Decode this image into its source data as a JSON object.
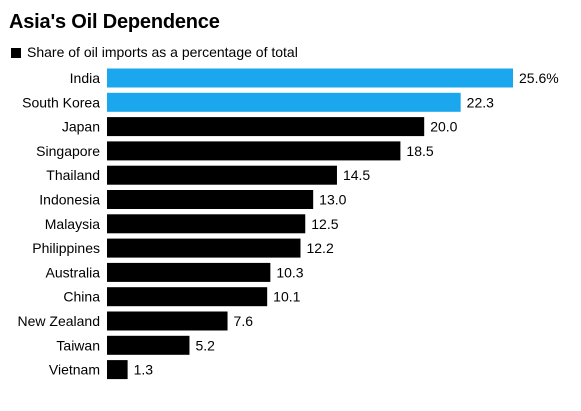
{
  "chart_data": {
    "type": "bar",
    "orientation": "horizontal",
    "title": "Asia's Oil Dependence",
    "subtitle": "Share of oil imports as a percentage of total",
    "categories": [
      "India",
      "South Korea",
      "Japan",
      "Singapore",
      "Thailand",
      "Indonesia",
      "Malaysia",
      "Philippines",
      "Australia",
      "China",
      "New Zealand",
      "Taiwan",
      "Vietnam"
    ],
    "values": [
      25.6,
      22.3,
      20.0,
      18.5,
      14.5,
      13.0,
      12.5,
      12.2,
      10.3,
      10.1,
      7.6,
      5.2,
      1.3
    ],
    "value_labels": [
      "25.6%",
      "22.3",
      "20.0",
      "18.5",
      "14.5",
      "13.0",
      "12.5",
      "12.2",
      "10.3",
      "10.1",
      "7.6",
      "5.2",
      "1.3"
    ],
    "highlighted": [
      "India",
      "South Korea"
    ],
    "colors": {
      "highlight": "#1aa7ee",
      "default": "#000000"
    },
    "legend": "top-left",
    "grid": false
  }
}
